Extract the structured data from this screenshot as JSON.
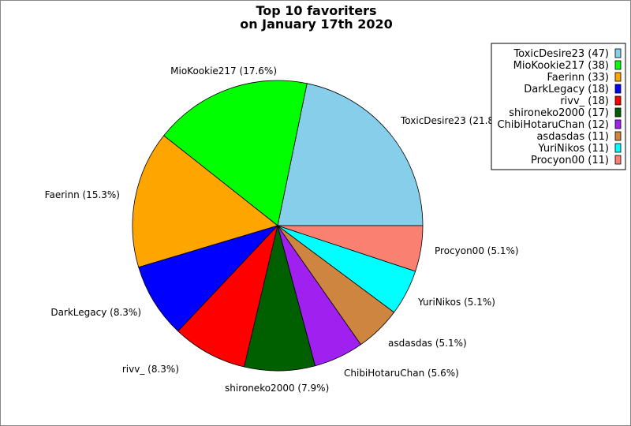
{
  "chart_data": {
    "type": "pie",
    "title_lines": [
      "Top 10 favoriters",
      "on January 17th 2020"
    ],
    "legend_position": "top-right",
    "slices": [
      {
        "name": "ToxicDesire23",
        "value": 47,
        "percent_label": "ToxicDesire23 (21.8%)",
        "legend": "ToxicDesire23 (47)",
        "color": "#87CEEB"
      },
      {
        "name": "MioKookie217",
        "value": 38,
        "percent_label": "MioKookie217 (17.6%)",
        "legend": "MioKookie217 (38)",
        "color": "#00FF00"
      },
      {
        "name": "Faerinn",
        "value": 33,
        "percent_label": "Faerinn (15.3%)",
        "legend": "Faerinn (33)",
        "color": "#FFA500"
      },
      {
        "name": "DarkLegacy",
        "value": 18,
        "percent_label": "DarkLegacy (8.3%)",
        "legend": "DarkLegacy (18)",
        "color": "#0000FF"
      },
      {
        "name": "rivv_",
        "value": 18,
        "percent_label": "rivv_ (8.3%)",
        "legend": "rivv_ (18)",
        "color": "#FF0000"
      },
      {
        "name": "shironeko2000",
        "value": 17,
        "percent_label": "shironeko2000 (7.9%)",
        "legend": "shironeko2000 (17)",
        "color": "#006000"
      },
      {
        "name": "ChibiHotaruChan",
        "value": 12,
        "percent_label": "ChibiHotaruChan (5.6%)",
        "legend": "ChibiHotaruChan (12)",
        "color": "#A020F0"
      },
      {
        "name": "asdasdas",
        "value": 11,
        "percent_label": "asdasdas (5.1%)",
        "legend": "asdasdas (11)",
        "color": "#CD853F"
      },
      {
        "name": "YuriNikos",
        "value": 11,
        "percent_label": "YuriNikos (5.1%)",
        "legend": "YuriNikos (11)",
        "color": "#00FFFF"
      },
      {
        "name": "Procyon00",
        "value": 11,
        "percent_label": "Procyon00 (5.1%)",
        "legend": "Procyon00 (11)",
        "color": "#FA8072"
      }
    ]
  }
}
